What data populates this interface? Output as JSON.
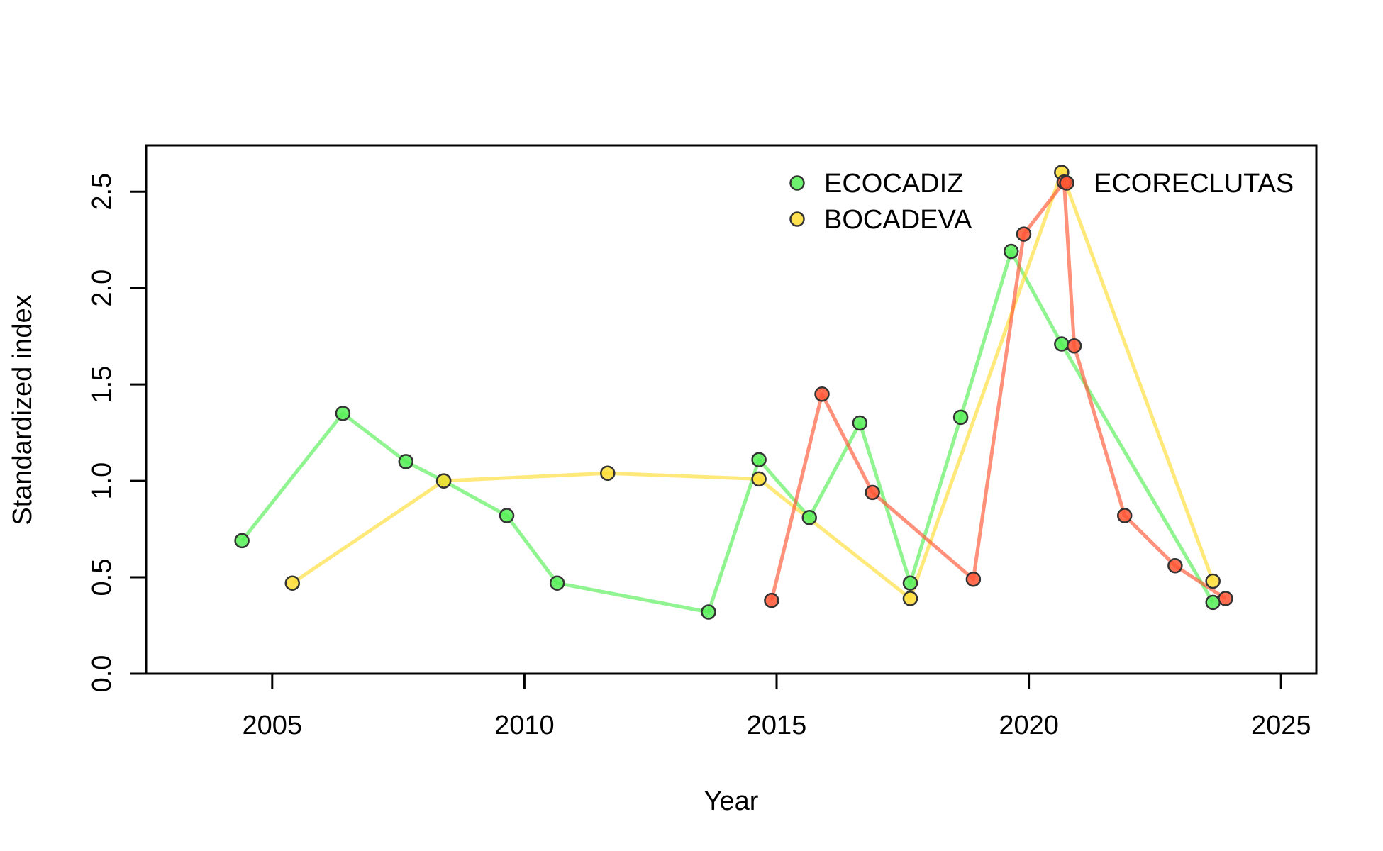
{
  "chart_data": {
    "type": "line",
    "title": "",
    "xlabel": "Year",
    "ylabel": "Standardized index",
    "xlim": [
      2002.5,
      2025.7
    ],
    "ylim": [
      0,
      2.74
    ],
    "x_ticks": [
      "2005",
      "2010",
      "2015",
      "2020",
      "2025"
    ],
    "y_ticks": [
      "0.0",
      "0.5",
      "1.0",
      "1.5",
      "2.0",
      "2.5"
    ],
    "grid": false,
    "legend_position": "top-right",
    "series": [
      {
        "name": "ECOCADIZ",
        "color": "#55ee55",
        "points": [
          [
            2004.4,
            0.69
          ],
          [
            2006.4,
            1.35
          ],
          [
            2007.65,
            1.1
          ],
          [
            2008.4,
            1.0
          ],
          [
            2009.65,
            0.82
          ],
          [
            2010.65,
            0.47
          ],
          [
            2013.65,
            0.32
          ],
          [
            2014.65,
            1.11
          ],
          [
            2015.65,
            0.81
          ],
          [
            2016.65,
            1.3
          ],
          [
            2017.65,
            0.47
          ],
          [
            2018.65,
            1.33
          ],
          [
            2019.65,
            2.19
          ],
          [
            2020.65,
            1.71
          ],
          [
            2023.65,
            0.37
          ]
        ]
      },
      {
        "name": "BOCADEVA",
        "color": "#ffdd33",
        "points": [
          [
            2005.4,
            0.47
          ],
          [
            2008.4,
            1.0
          ],
          [
            2011.65,
            1.04
          ],
          [
            2014.65,
            1.01
          ],
          [
            2017.65,
            0.39
          ],
          [
            2020.65,
            2.6
          ],
          [
            2023.65,
            0.48
          ]
        ]
      },
      {
        "name": "ECORECLUTAS",
        "color": "#ff5533",
        "points": [
          [
            2014.9,
            0.38
          ],
          [
            2015.9,
            1.45
          ],
          [
            2016.9,
            0.94
          ],
          [
            2018.9,
            0.49
          ],
          [
            2019.9,
            2.28
          ],
          [
            2020.7,
            2.55
          ],
          [
            2020.9,
            1.7
          ],
          [
            2021.9,
            0.82
          ],
          [
            2022.9,
            0.56
          ],
          [
            2023.9,
            0.39
          ]
        ]
      }
    ]
  }
}
